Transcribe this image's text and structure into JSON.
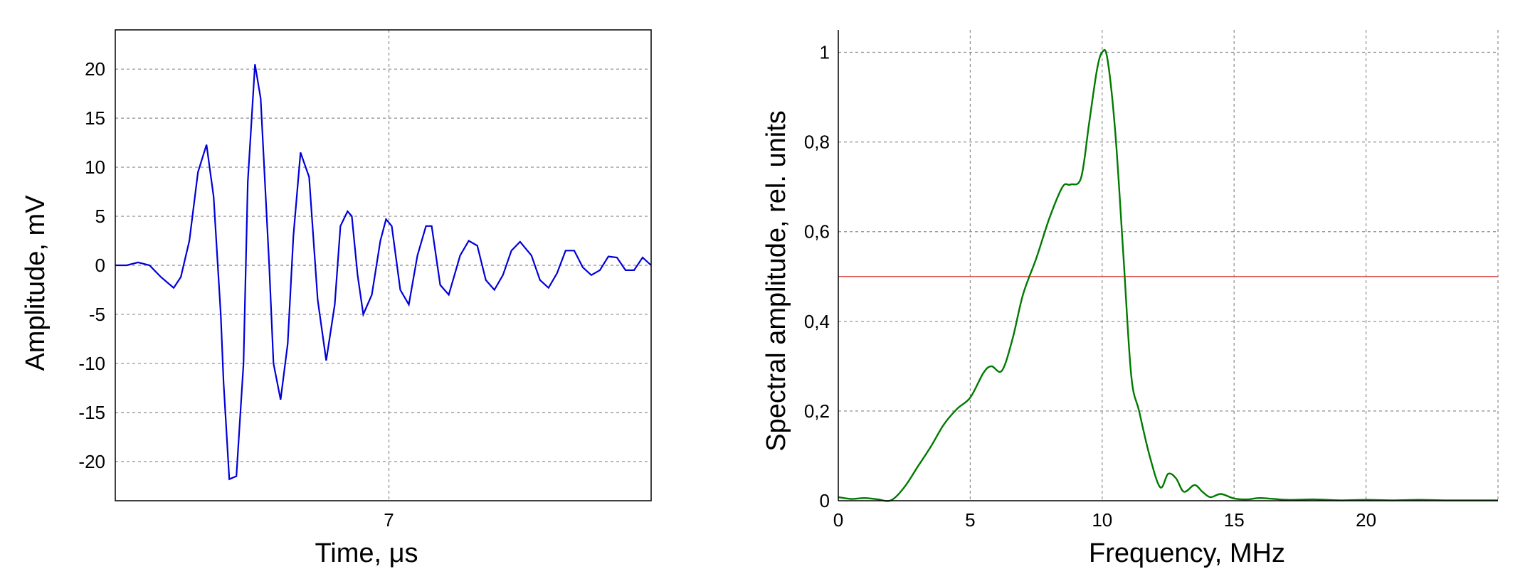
{
  "chart_data": [
    {
      "type": "line",
      "xlabel": "Time, μs",
      "ylabel": "Amplitude, mV",
      "x_ticks": [
        7
      ],
      "y_ticks": [
        20,
        15,
        10,
        5,
        0,
        -5,
        -10,
        -15,
        -20
      ],
      "xlim": [
        6.04,
        7.92
      ],
      "ylim": [
        -24,
        24
      ],
      "grid": true,
      "colors": {
        "line": "#0000d8"
      },
      "series": [
        {
          "x": [
            6.04,
            6.08,
            6.12,
            6.16,
            6.2,
            6.245,
            6.27,
            6.3,
            6.33,
            6.36,
            6.385,
            6.41,
            6.42,
            6.44,
            6.465,
            6.49,
            6.505,
            6.53,
            6.55,
            6.58,
            6.595,
            6.62,
            6.645,
            6.665,
            6.69,
            6.72,
            6.75,
            6.78,
            6.81,
            6.83,
            6.855,
            6.87,
            6.89,
            6.91,
            6.94,
            6.97,
            6.99,
            7.01,
            7.04,
            7.07,
            7.1,
            7.13,
            7.15,
            7.18,
            7.21,
            7.25,
            7.28,
            7.31,
            7.34,
            7.37,
            7.4,
            7.43,
            7.46,
            7.5,
            7.53,
            7.56,
            7.59,
            7.62,
            7.65,
            7.68,
            7.71,
            7.74,
            7.77,
            7.8,
            7.83,
            7.86,
            7.89,
            7.92
          ],
          "y": [
            0,
            0,
            0.3,
            0,
            -1.2,
            -2.3,
            -1.2,
            2.5,
            9.5,
            12.3,
            7,
            -5,
            -12,
            -21.8,
            -21.5,
            -10,
            8.5,
            20.5,
            17,
            0,
            -10,
            -13.7,
            -8,
            3,
            11.5,
            9,
            -3.5,
            -9.7,
            -4,
            4,
            5.5,
            5,
            -1,
            -5,
            -3,
            2.5,
            4.7,
            4,
            -2.5,
            -4,
            1,
            4,
            4,
            -2,
            -3,
            1,
            2.5,
            2,
            -1.5,
            -2.5,
            -1,
            1.5,
            2.4,
            1,
            -1.5,
            -2.3,
            -0.8,
            1.5,
            1.5,
            -0.2,
            -1,
            -0.5,
            0.9,
            0.8,
            -0.5,
            -0.5,
            0.8,
            0
          ]
        }
      ]
    },
    {
      "type": "line",
      "xlabel": "Frequency, MHz",
      "ylabel": "Spectral amplitude, rel. units",
      "x_ticks": [
        0,
        5,
        10,
        15,
        20
      ],
      "x_tick_labels": [
        "0",
        "5",
        "10",
        "15",
        "20"
      ],
      "y_ticks": [
        0,
        0.2,
        0.4,
        0.6,
        0.8,
        1
      ],
      "y_tick_labels": [
        "0",
        "0,2",
        "0,4",
        "0,6",
        "0,8",
        "1"
      ],
      "xlim": [
        0,
        25
      ],
      "ylim": [
        0,
        1.05
      ],
      "grid": true,
      "threshold": 0.5,
      "colors": {
        "line": "#007a00",
        "threshold": "#e05050"
      },
      "series": [
        {
          "x": [
            0,
            0.5,
            1,
            1.5,
            2,
            2.5,
            3,
            3.5,
            4,
            4.5,
            5,
            5.5,
            5.8,
            6.2,
            6.6,
            7,
            7.5,
            8,
            8.5,
            8.8,
            9.2,
            9.5,
            9.8,
            10,
            10.2,
            10.5,
            10.8,
            11.1,
            11.4,
            11.8,
            12.2,
            12.5,
            12.8,
            13.1,
            13.5,
            13.8,
            14.1,
            14.5,
            15,
            15.5,
            16,
            17,
            18,
            19,
            20,
            21,
            22,
            23,
            24,
            25
          ],
          "y": [
            0.008,
            0.004,
            0.006,
            0.003,
            0.001,
            0.03,
            0.075,
            0.12,
            0.17,
            0.205,
            0.23,
            0.285,
            0.3,
            0.29,
            0.36,
            0.46,
            0.54,
            0.63,
            0.7,
            0.705,
            0.72,
            0.84,
            0.96,
            1.0,
            0.985,
            0.82,
            0.55,
            0.28,
            0.2,
            0.1,
            0.03,
            0.06,
            0.05,
            0.02,
            0.035,
            0.02,
            0.008,
            0.015,
            0.005,
            0.003,
            0.006,
            0.002,
            0.003,
            0.001,
            0.002,
            0.001,
            0.002,
            0.001,
            0.001,
            0.001
          ]
        }
      ]
    }
  ]
}
